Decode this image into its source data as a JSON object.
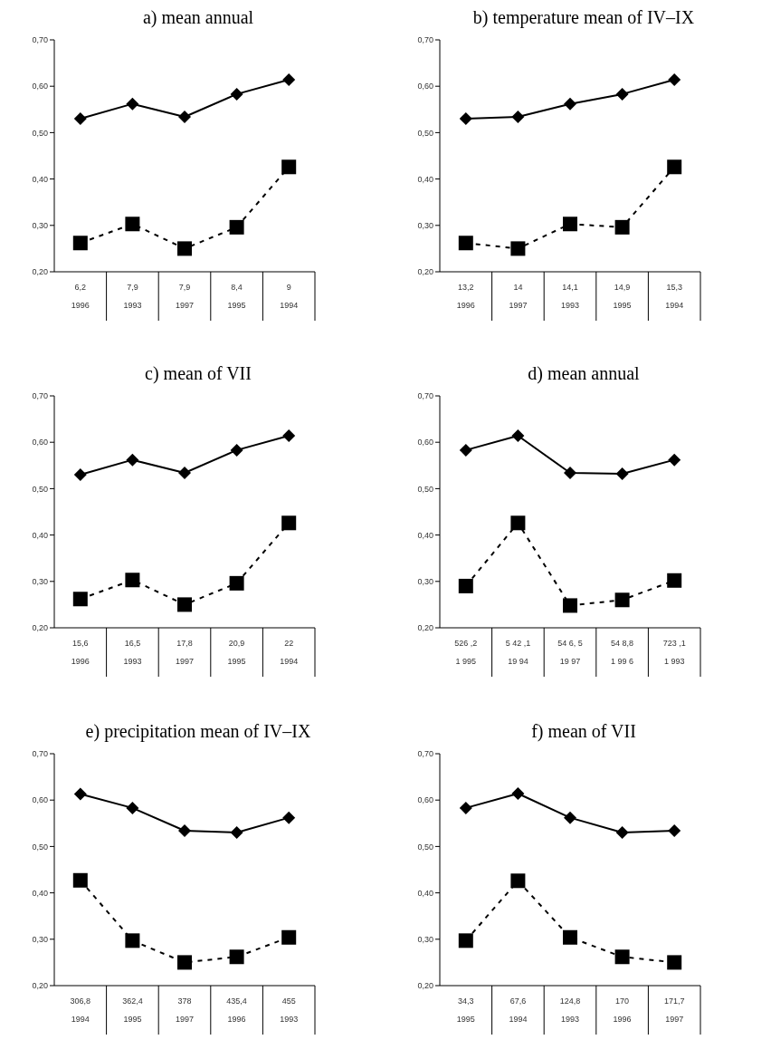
{
  "chart_data": [
    {
      "type": "line",
      "title": "a) mean annual",
      "categories": [
        "6,2\n1996",
        "7,9\n1993",
        "7,9\n1997",
        "8,4\n1995",
        "9\n1994"
      ],
      "ylim": [
        0.2,
        0.7
      ],
      "yticks": [
        {
          "value": 0.2,
          "label": "0,20"
        },
        {
          "value": 0.3,
          "label": "0,30"
        },
        {
          "value": 0.4,
          "label": "0,40"
        },
        {
          "value": 0.5,
          "label": "0,50"
        },
        {
          "value": 0.6,
          "label": "0,60"
        },
        {
          "value": 0.7,
          "label": "0,70"
        }
      ],
      "grid": false,
      "legend": false,
      "series": [
        {
          "color": "#000000",
          "marker": "diamond",
          "line_style": "solid",
          "values": [
            0.53,
            0.562,
            0.534,
            0.583,
            0.614
          ]
        },
        {
          "color": "#000000",
          "marker": "square",
          "line_style": "dashed",
          "values": [
            0.262,
            0.303,
            0.25,
            0.296,
            0.426
          ]
        }
      ]
    },
    {
      "type": "line",
      "title": "b) temperature mean of IV–IX",
      "categories": [
        "13,2\n1996",
        "14\n1997",
        "14,1\n1993",
        "14,9\n1995",
        "15,3\n1994"
      ],
      "ylim": [
        0.2,
        0.7
      ],
      "yticks": [
        {
          "value": 0.2,
          "label": "0,20"
        },
        {
          "value": 0.3,
          "label": "0,30"
        },
        {
          "value": 0.4,
          "label": "0,40"
        },
        {
          "value": 0.5,
          "label": "0,50"
        },
        {
          "value": 0.6,
          "label": "0,60"
        },
        {
          "value": 0.7,
          "label": "0,70"
        }
      ],
      "grid": false,
      "legend": false,
      "series": [
        {
          "color": "#000000",
          "marker": "diamond",
          "line_style": "solid",
          "values": [
            0.53,
            0.534,
            0.562,
            0.583,
            0.614
          ]
        },
        {
          "color": "#000000",
          "marker": "square",
          "line_style": "dashed",
          "values": [
            0.262,
            0.25,
            0.303,
            0.296,
            0.426
          ]
        }
      ]
    },
    {
      "type": "line",
      "title": "c) mean of VII",
      "categories": [
        "15,6\n1996",
        "16,5\n1993",
        "17,8\n1997",
        "20,9\n1995",
        "22\n1994"
      ],
      "ylim": [
        0.2,
        0.7
      ],
      "yticks": [
        {
          "value": 0.2,
          "label": "0,20"
        },
        {
          "value": 0.3,
          "label": "0,30"
        },
        {
          "value": 0.4,
          "label": "0,40"
        },
        {
          "value": 0.5,
          "label": "0,50"
        },
        {
          "value": 0.6,
          "label": "0,60"
        },
        {
          "value": 0.7,
          "label": "0,70"
        }
      ],
      "grid": false,
      "legend": false,
      "series": [
        {
          "color": "#000000",
          "marker": "diamond",
          "line_style": "solid",
          "values": [
            0.53,
            0.562,
            0.534,
            0.583,
            0.614
          ]
        },
        {
          "color": "#000000",
          "marker": "square",
          "line_style": "dashed",
          "values": [
            0.262,
            0.303,
            0.25,
            0.296,
            0.426
          ]
        }
      ]
    },
    {
      "type": "line",
      "title": "d) mean annual",
      "categories": [
        "526 ,2\n1 995",
        "5 42 ,1\n19 94",
        "54 6, 5\n19 97",
        "54 8,8\n1 99 6",
        "723 ,1\n1 993"
      ],
      "ylim": [
        0.2,
        0.7
      ],
      "yticks": [
        {
          "value": 0.2,
          "label": "0,20"
        },
        {
          "value": 0.3,
          "label": "0,30"
        },
        {
          "value": 0.4,
          "label": "0,40"
        },
        {
          "value": 0.5,
          "label": "0,50"
        },
        {
          "value": 0.6,
          "label": "0,60"
        },
        {
          "value": 0.7,
          "label": "0,70"
        }
      ],
      "grid": false,
      "legend": false,
      "series": [
        {
          "color": "#000000",
          "marker": "diamond",
          "line_style": "solid",
          "values": [
            0.583,
            0.614,
            0.534,
            0.532,
            0.562
          ]
        },
        {
          "color": "#000000",
          "marker": "square",
          "line_style": "dashed",
          "values": [
            0.29,
            0.426,
            0.248,
            0.26,
            0.302
          ]
        }
      ]
    },
    {
      "type": "line",
      "title": "e) precipitation mean of  IV–IX",
      "categories": [
        "306,8\n1994",
        "362,4\n1995",
        "378\n1997",
        "435,4\n1996",
        "455\n1993"
      ],
      "ylim": [
        0.2,
        0.7
      ],
      "yticks": [
        {
          "value": 0.2,
          "label": "0,20"
        },
        {
          "value": 0.3,
          "label": "0,30"
        },
        {
          "value": 0.4,
          "label": "0,40"
        },
        {
          "value": 0.5,
          "label": "0,50"
        },
        {
          "value": 0.6,
          "label": "0,60"
        },
        {
          "value": 0.7,
          "label": "0,70"
        }
      ],
      "grid": false,
      "legend": false,
      "series": [
        {
          "color": "#000000",
          "marker": "diamond",
          "line_style": "solid",
          "values": [
            0.613,
            0.583,
            0.534,
            0.53,
            0.562
          ]
        },
        {
          "color": "#000000",
          "marker": "square",
          "line_style": "dashed",
          "values": [
            0.427,
            0.297,
            0.25,
            0.262,
            0.304
          ]
        }
      ]
    },
    {
      "type": "line",
      "title": "f) mean of VII",
      "categories": [
        "34,3\n1995",
        "67,6\n1994",
        "124,8\n1993",
        "170\n1996",
        "171,7\n1997"
      ],
      "ylim": [
        0.2,
        0.7
      ],
      "yticks": [
        {
          "value": 0.2,
          "label": "0,20"
        },
        {
          "value": 0.3,
          "label": "0,30"
        },
        {
          "value": 0.4,
          "label": "0,40"
        },
        {
          "value": 0.5,
          "label": "0,50"
        },
        {
          "value": 0.6,
          "label": "0,60"
        },
        {
          "value": 0.7,
          "label": "0,70"
        }
      ],
      "grid": false,
      "legend": false,
      "series": [
        {
          "color": "#000000",
          "marker": "diamond",
          "line_style": "solid",
          "values": [
            0.583,
            0.614,
            0.562,
            0.53,
            0.534
          ]
        },
        {
          "color": "#000000",
          "marker": "square",
          "line_style": "dashed",
          "values": [
            0.297,
            0.426,
            0.304,
            0.262,
            0.25
          ]
        }
      ]
    }
  ]
}
